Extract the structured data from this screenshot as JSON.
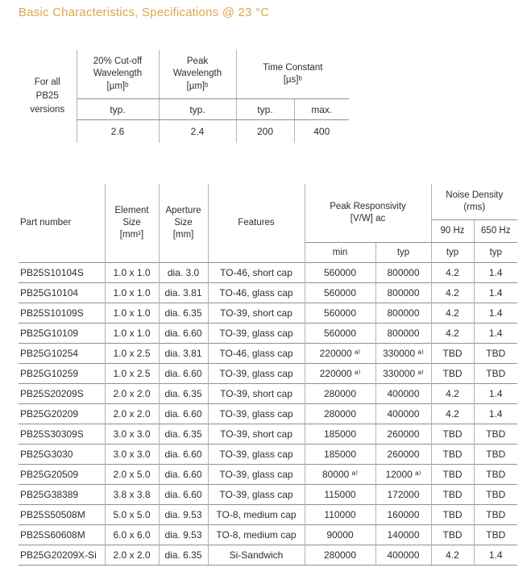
{
  "title": "Basic Characteristics, Specifications @ 23 °C",
  "colors": {
    "title_accent": "#E2A449",
    "text": "#2d2d2d",
    "grid_line_horizontal": "#909090",
    "grid_line_vertical": "#b3b3b3"
  },
  "general_table": {
    "row_label": "For all\nPB25\nversions",
    "col_headers": [
      "20% Cut-off\nWavelength\n[µm]ᵇ",
      "Peak\nWavelength\n[µm]ᵇ",
      "Time Constant\n[µs]ᵇ"
    ],
    "sub_headers": [
      "typ.",
      "typ.",
      "typ.",
      "max."
    ],
    "values": [
      "2.6",
      "2.4",
      "200",
      "400"
    ]
  },
  "main_table": {
    "col_headers": {
      "part_number": "Part number",
      "element_size": "Element\nSize\n[mm²]",
      "aperture_size": "Aperture\nSize\n[mm]",
      "features": "Features",
      "peak_responsivity": "Peak Responsivity\n[V/W] ac",
      "noise_density": "Noise Density\n(rms)",
      "noise_90hz": "90 Hz",
      "noise_650hz": "650 Hz",
      "resp_min": "min",
      "resp_typ": "typ",
      "noise_90_typ": "typ",
      "noise_650_typ": "typ"
    },
    "rows": [
      [
        "PB25S10104S",
        "1.0 x 1.0",
        "dia. 3.0",
        "TO-46, short cap",
        "560000",
        "800000",
        "4.2",
        "1.4"
      ],
      [
        "PB25G10104",
        "1.0 x 1.0",
        "dia. 3.81",
        "TO-46, glass cap",
        "560000",
        "800000",
        "4.2",
        "1.4"
      ],
      [
        "PB25S10109S",
        "1.0 x 1.0",
        "dia. 6.35",
        "TO-39, short cap",
        "560000",
        "800000",
        "4.2",
        "1.4"
      ],
      [
        "PB25G10109",
        "1.0 x 1.0",
        "dia. 6.60",
        "TO-39, glass cap",
        "560000",
        "800000",
        "4.2",
        "1.4"
      ],
      [
        "PB25G10254",
        "1.0 x 2.5",
        "dia. 3.81",
        "TO-46, glass cap",
        "220000 ᵃ⁾",
        "330000 ᵃ⁾",
        "TBD",
        "TBD"
      ],
      [
        "PB25G10259",
        "1.0 x 2.5",
        "dia. 6.60",
        "TO-39, glass cap",
        "220000 ᵃ⁾",
        "330000 ᵃ⁾",
        "TBD",
        "TBD"
      ],
      [
        "PB25S20209S",
        "2.0 x 2.0",
        "dia. 6.35",
        "TO-39, short cap",
        "280000",
        "400000",
        "4.2",
        "1.4"
      ],
      [
        "PB25G20209",
        "2.0 x 2.0",
        "dia. 6.60",
        "TO-39, glass cap",
        "280000",
        "400000",
        "4.2",
        "1.4"
      ],
      [
        "PB25S30309S",
        "3.0 x 3.0",
        "dia. 6.35",
        "TO-39, short cap",
        "185000",
        "260000",
        "TBD",
        "TBD"
      ],
      [
        "PB25G3030",
        "3.0 x 3.0",
        "dia. 6.60",
        "TO-39, glass cap",
        "185000",
        "260000",
        "TBD",
        "TBD"
      ],
      [
        "PB25G20509",
        "2.0 x 5.0",
        "dia. 6.60",
        "TO-39, glass cap",
        "80000 ᵃ⁾",
        "12000 ᵃ⁾",
        "TBD",
        "TBD"
      ],
      [
        "PB25G38389",
        "3.8 x 3.8",
        "dia. 6.60",
        "TO-39, glass cap",
        "115000",
        "172000",
        "TBD",
        "TBD"
      ],
      [
        "PB25S50508M",
        "5.0 x 5.0",
        "dia. 9.53",
        "TO-8, medium cap",
        "110000",
        "160000",
        "TBD",
        "TBD"
      ],
      [
        "PB25S60608M",
        "6.0 x 6.0",
        "dia. 9.53",
        "TO-8, medium cap",
        "90000",
        "140000",
        "TBD",
        "TBD"
      ],
      [
        "PB25G20209X-Si",
        "2.0 x 2.0",
        "dia. 6.35",
        "Si-Sandwich",
        "280000",
        "400000",
        "4.2",
        "1.4"
      ]
    ]
  }
}
